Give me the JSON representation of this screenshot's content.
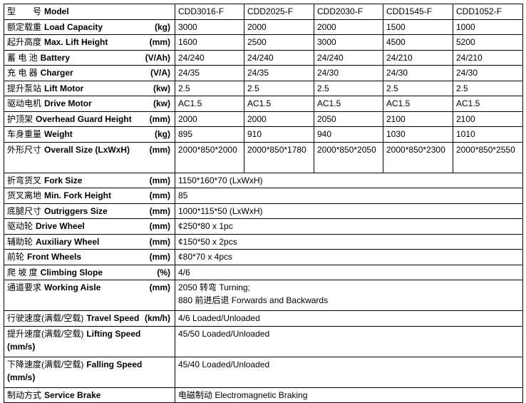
{
  "table": {
    "rows": [
      {
        "cn": "型　　号",
        "en": "Model",
        "values": [
          "CDD3016-F",
          "CDD2025-F",
          "CDD2030-F",
          "CDD1545-F",
          "CDD1052-F"
        ]
      },
      {
        "cn": "额定载重",
        "en": "Load Capacity",
        "unit": "(kg)",
        "values": [
          3000,
          2000,
          2000,
          1500,
          1000
        ]
      },
      {
        "cn": "起升高度",
        "en": "Max. Lift Height",
        "unit": "(mm)",
        "values": [
          1600,
          2500,
          3000,
          4500,
          5200
        ]
      },
      {
        "cn": "蓄 电 池",
        "en": "Battery",
        "unit": "(V/Ah)",
        "values": [
          "24/240",
          "24/240",
          "24/240",
          "24/210",
          "24/210"
        ]
      },
      {
        "cn": "充 电 器",
        "en": "Charger",
        "unit": "(V/A)",
        "values": [
          "24/35",
          "24/35",
          "24/30",
          "24/30",
          "24/30"
        ]
      },
      {
        "cn": "提升泵站",
        "en": "Lift Motor",
        "unit": "(kw)",
        "values": [
          2.5,
          2.5,
          2.5,
          2.5,
          2.5
        ]
      },
      {
        "cn": "驱动电机",
        "en": "Drive Motor",
        "unit": "(kw)",
        "values": [
          "AC1.5",
          "AC1.5",
          "AC1.5",
          "AC1.5",
          "AC1.5"
        ]
      },
      {
        "cn": "护顶架",
        "en": "Overhead Guard Height",
        "unit": "(mm)",
        "values": [
          2000,
          2000,
          2050,
          2100,
          2100
        ]
      },
      {
        "cn": "车身重量",
        "en": "Weight",
        "unit": "(kg)",
        "values": [
          895,
          910,
          940,
          1030,
          1010
        ]
      },
      {
        "cn": "外形尺寸",
        "en": "Overall Size (LxWxH)",
        "unit": "(mm)",
        "values": [
          "2000*850*2000",
          "2000*850*1780",
          "2000*850*2050",
          "2000*850*2300",
          "2000*850*2550"
        ]
      },
      {
        "cn": "折弯货叉",
        "en": "Fork Size",
        "unit": "(mm)",
        "lines": [
          "1150*160*70 (LxWxH)"
        ]
      },
      {
        "cn": "货叉离地",
        "en": "Min. Fork Height",
        "unit": "(mm)",
        "lines": [
          "85"
        ]
      },
      {
        "cn": "底腿尺寸",
        "en": "Outriggers Size",
        "unit": "(mm)",
        "lines": [
          "1000*115*50 (LxWxH)"
        ]
      },
      {
        "cn": "驱动轮",
        "en": "Drive Wheel",
        "unit": "(mm)",
        "lines": [
          "¢250*80 x 1pc"
        ]
      },
      {
        "cn": "辅助轮",
        "en": "Auxiliary Wheel",
        "unit": "(mm)",
        "lines": [
          "¢150*50 x 2pcs"
        ]
      },
      {
        "cn": "前轮",
        "en": "Front Wheels",
        "unit": "(mm)",
        "lines": [
          "¢80*70 x 4pcs"
        ]
      },
      {
        "cn": "爬 坡 度",
        "en": "Climbing Slope",
        "unit": "(%)",
        "lines": [
          "4/6"
        ]
      },
      {
        "cn": "通道要求",
        "en": "Working Aisle",
        "unit": "(mm)",
        "lines": [
          "2050 转弯 Turning;",
          "880 前进后退 Forwards and Backwards"
        ]
      },
      {
        "cn": "行驶速度(满载/空载)",
        "en": "Travel Speed",
        "unit": "(km/h)",
        "lines": [
          "4/6 Loaded/Unloaded"
        ]
      },
      {
        "cn": "提升速度(满载/空载)",
        "en": "Lifting Speed",
        "unit": "(mm/s)",
        "lines": [
          "45/50 Loaded/Unloaded"
        ]
      },
      {
        "cn": "下降速度(满载/空载)",
        "en": "Falling Speed",
        "unit": "(mm/s)",
        "lines": [
          "45/40 Loaded/Unloaded"
        ]
      },
      {
        "cn": "制动方式",
        "en": "Service Brake",
        "lines": [
          "电磁制动 Electromagnetic Braking"
        ]
      }
    ]
  }
}
